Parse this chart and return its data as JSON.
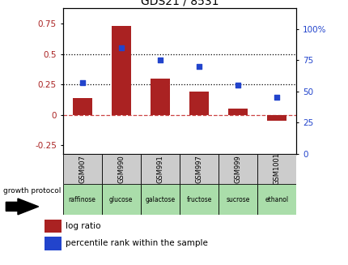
{
  "title": "GDS21 / 8531",
  "samples": [
    "GSM907",
    "GSM990",
    "GSM991",
    "GSM997",
    "GSM999",
    "GSM1001"
  ],
  "conditions": [
    "raffinose",
    "glucose",
    "galactose",
    "fructose",
    "sucrose",
    "ethanol"
  ],
  "log_ratio": [
    0.14,
    0.73,
    0.3,
    0.19,
    0.05,
    -0.05
  ],
  "percentile_rank": [
    57,
    85,
    75,
    70,
    55,
    45
  ],
  "left_ylim": [
    -0.32,
    0.88
  ],
  "right_ylim": [
    0,
    117
  ],
  "left_yticks": [
    -0.25,
    0,
    0.25,
    0.5,
    0.75
  ],
  "right_yticks": [
    0,
    25,
    50,
    75,
    100
  ],
  "bar_color": "#aa2222",
  "dot_color": "#2244cc",
  "zero_line_color": "#cc4444",
  "condition_bg": "#aaddaa",
  "sample_bg": "#cccccc",
  "legend_bar_label": "log ratio",
  "legend_dot_label": "percentile rank within the sample",
  "growth_protocol_label": "growth protocol",
  "bar_width": 0.5
}
